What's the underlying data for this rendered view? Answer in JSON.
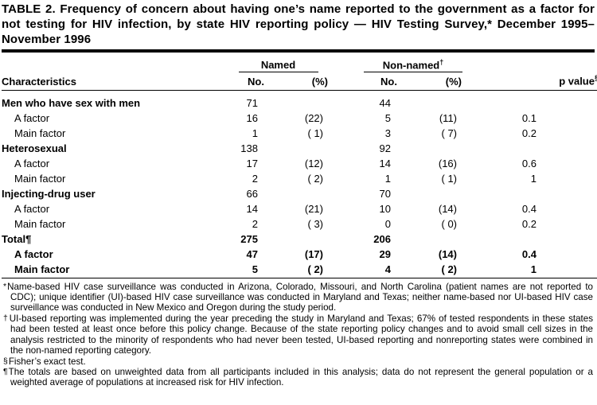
{
  "title": "TABLE 2. Frequency of concern about having one’s name reported to the government as a factor for not testing for HIV infection, by state HIV reporting policy — HIV Testing Survey,* December 1995–November 1996",
  "table": {
    "named_label": "Named",
    "non_named_label": "Non-named",
    "non_named_sup": "†",
    "col_characteristics": "Characteristics",
    "col_no": "No.",
    "col_pct": "(%)",
    "col_p": "p value",
    "col_p_sup": "§",
    "rows": [
      {
        "label": "Men who have sex with men",
        "indent": false,
        "label_bold": true,
        "bold": false,
        "named_no": "71",
        "named_pct": "",
        "non_no": "44",
        "non_pct": "",
        "p": ""
      },
      {
        "label": "A factor",
        "indent": true,
        "label_bold": false,
        "bold": false,
        "named_no": "16",
        "named_pct": "(22)",
        "non_no": "5",
        "non_pct": "(11)",
        "p": "0.1"
      },
      {
        "label": "Main factor",
        "indent": true,
        "label_bold": false,
        "bold": false,
        "named_no": "1",
        "named_pct": "( 1)",
        "non_no": "3",
        "non_pct": "( 7)",
        "p": "0.2"
      },
      {
        "label": "Heterosexual",
        "indent": false,
        "label_bold": true,
        "bold": false,
        "named_no": "138",
        "named_pct": "",
        "non_no": "92",
        "non_pct": "",
        "p": ""
      },
      {
        "label": "A factor",
        "indent": true,
        "label_bold": false,
        "bold": false,
        "named_no": "17",
        "named_pct": "(12)",
        "non_no": "14",
        "non_pct": "(16)",
        "p": "0.6"
      },
      {
        "label": "Main factor",
        "indent": true,
        "label_bold": false,
        "bold": false,
        "named_no": "2",
        "named_pct": "( 2)",
        "non_no": "1",
        "non_pct": "( 1)",
        "p": "1"
      },
      {
        "label": "Injecting-drug user",
        "indent": false,
        "label_bold": true,
        "bold": false,
        "named_no": "66",
        "named_pct": "",
        "non_no": "70",
        "non_pct": "",
        "p": ""
      },
      {
        "label": "A factor",
        "indent": true,
        "label_bold": false,
        "bold": false,
        "named_no": "14",
        "named_pct": "(21)",
        "non_no": "10",
        "non_pct": "(14)",
        "p": "0.4"
      },
      {
        "label": "Main factor",
        "indent": true,
        "label_bold": false,
        "bold": false,
        "named_no": "2",
        "named_pct": "( 3)",
        "non_no": "0",
        "non_pct": "( 0)",
        "p": "0.2"
      },
      {
        "label": "Total¶",
        "indent": false,
        "label_bold": true,
        "bold": true,
        "named_no": "275",
        "named_pct": "",
        "non_no": "206",
        "non_pct": "",
        "p": ""
      },
      {
        "label": "A factor",
        "indent": true,
        "label_bold": false,
        "bold": true,
        "named_no": "47",
        "named_pct": "(17)",
        "non_no": "29",
        "non_pct": "(14)",
        "p": "0.4"
      },
      {
        "label": "Main factor",
        "indent": true,
        "label_bold": false,
        "bold": true,
        "named_no": "5",
        "named_pct": "( 2)",
        "non_no": "4",
        "non_pct": "( 2)",
        "p": "1"
      }
    ]
  },
  "footnotes": [
    {
      "symbol": "*",
      "text": "Name-based HIV case surveillance was conducted in Arizona, Colorado, Missouri, and North Carolina (patient names are not reported to CDC); unique identifier (UI)-based HIV case surveillance was conducted in Maryland and Texas; neither name-based nor UI-based HIV case surveillance was conducted in New Mexico and Oregon during the study period."
    },
    {
      "symbol": "†",
      "text": "UI-based reporting was implemented during the year preceding the study in Maryland and Texas; 67% of tested respondents in these states had been tested at least once before this policy change. Because of the state reporting policy changes and to avoid small cell sizes in the analysis restricted to the minority of respondents who had never been tested, UI-based reporting and nonreporting states were combined in the non-named reporting category."
    },
    {
      "symbol": "§",
      "text": "Fisher’s exact test."
    },
    {
      "symbol": "¶",
      "text": "The totals are based on unweighted data from all participants included in this analysis; data do not represent the general population or a weighted average of populations at increased risk for HIV infection."
    }
  ]
}
